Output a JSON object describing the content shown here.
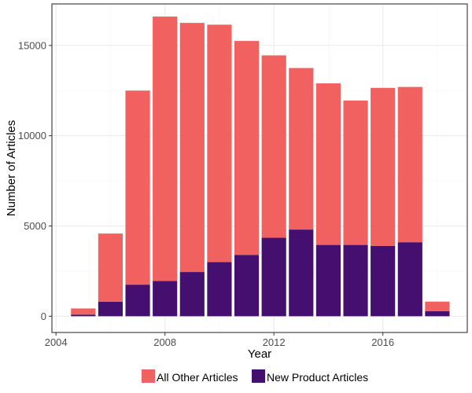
{
  "chart_data": {
    "type": "bar",
    "stacked": true,
    "xlabel": "Year",
    "ylabel": "Number of Articles",
    "x": [
      2005,
      2006,
      2007,
      2008,
      2009,
      2010,
      2011,
      2012,
      2013,
      2014,
      2015,
      2016,
      2017,
      2018
    ],
    "series": [
      {
        "name": "New Product Articles",
        "color": "#440f6f",
        "values": [
          90,
          800,
          1750,
          1950,
          2450,
          3000,
          3400,
          4350,
          4800,
          3950,
          3950,
          3900,
          4100,
          280
        ]
      },
      {
        "name": "All Other Articles",
        "color": "#f0615f",
        "values": [
          340,
          3780,
          10750,
          14650,
          13800,
          13150,
          11850,
          10100,
          8950,
          8950,
          8000,
          8750,
          8600,
          530
        ]
      }
    ],
    "xlim": [
      2003.85,
      2019.1
    ],
    "ylim": [
      -900,
      17300
    ],
    "x_ticks": [
      2004,
      2008,
      2012,
      2016
    ],
    "x_tick_labels": [
      "2004",
      "2008",
      "2012",
      "2016"
    ],
    "y_ticks": [
      0,
      5000,
      10000,
      15000
    ],
    "y_tick_labels": [
      "0",
      "5000",
      "10000",
      "15000"
    ],
    "grid": true,
    "legend": {
      "position": "bottom",
      "entries": [
        "All Other Articles",
        "New Product Articles"
      ]
    },
    "colors": {
      "panel_border": "#333333",
      "grid_major": "#ebebeb",
      "grid_minor": "#f5f5f5"
    }
  }
}
